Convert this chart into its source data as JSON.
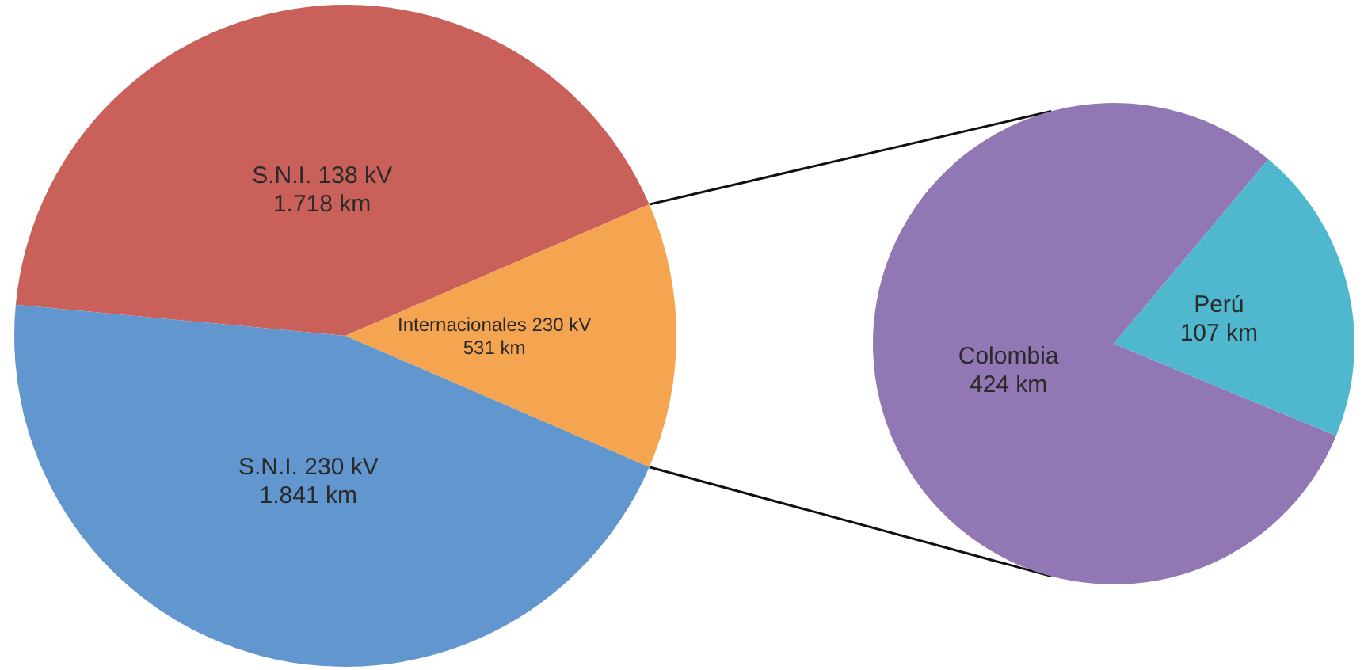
{
  "chart_data": [
    {
      "type": "pie",
      "categories": [
        "S.N.I. 138 kV",
        "Internacionales 230 kV",
        "S.N.I. 230 kV"
      ],
      "values": [
        1718,
        531,
        1841
      ],
      "colors": [
        "#c9605a",
        "#f5a550",
        "#6196cf"
      ],
      "value_labels": [
        "1.718 km",
        "531 km",
        "1.841 km"
      ]
    },
    {
      "type": "pie",
      "categories": [
        "Colombia",
        "Perú"
      ],
      "values": [
        424,
        107
      ],
      "colors": [
        "#9177b3",
        "#4fb8cf"
      ],
      "value_labels": [
        "424 km",
        "107 km"
      ]
    }
  ]
}
